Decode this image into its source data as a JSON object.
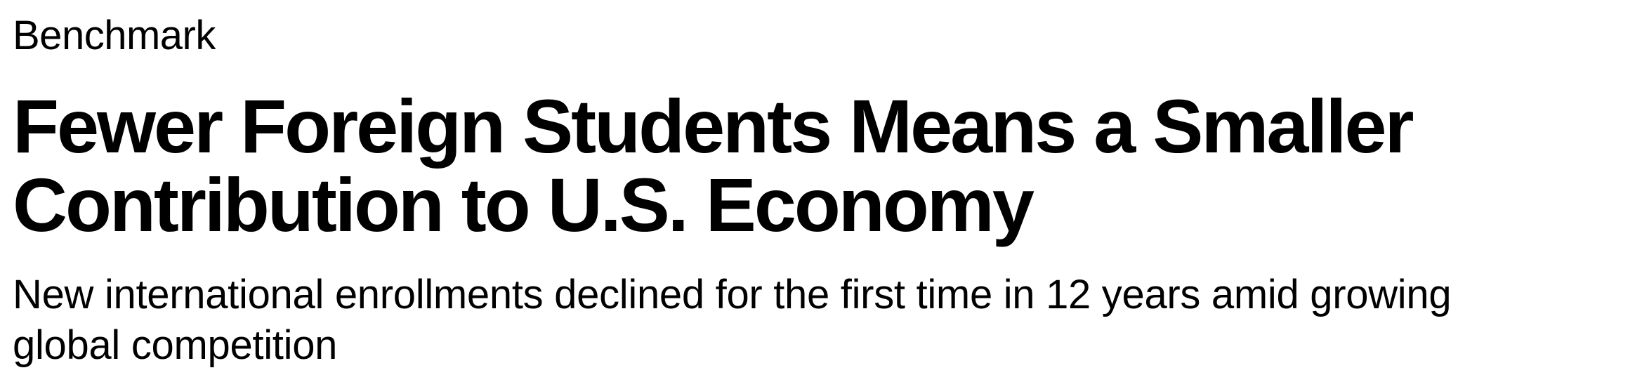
{
  "article": {
    "kicker": "Benchmark",
    "headline": "Fewer Foreign Students Means a Smaller Contribution to U.S. Economy",
    "dek": "New international enrollments declined for the first time in 12 years amid growing global competition"
  }
}
